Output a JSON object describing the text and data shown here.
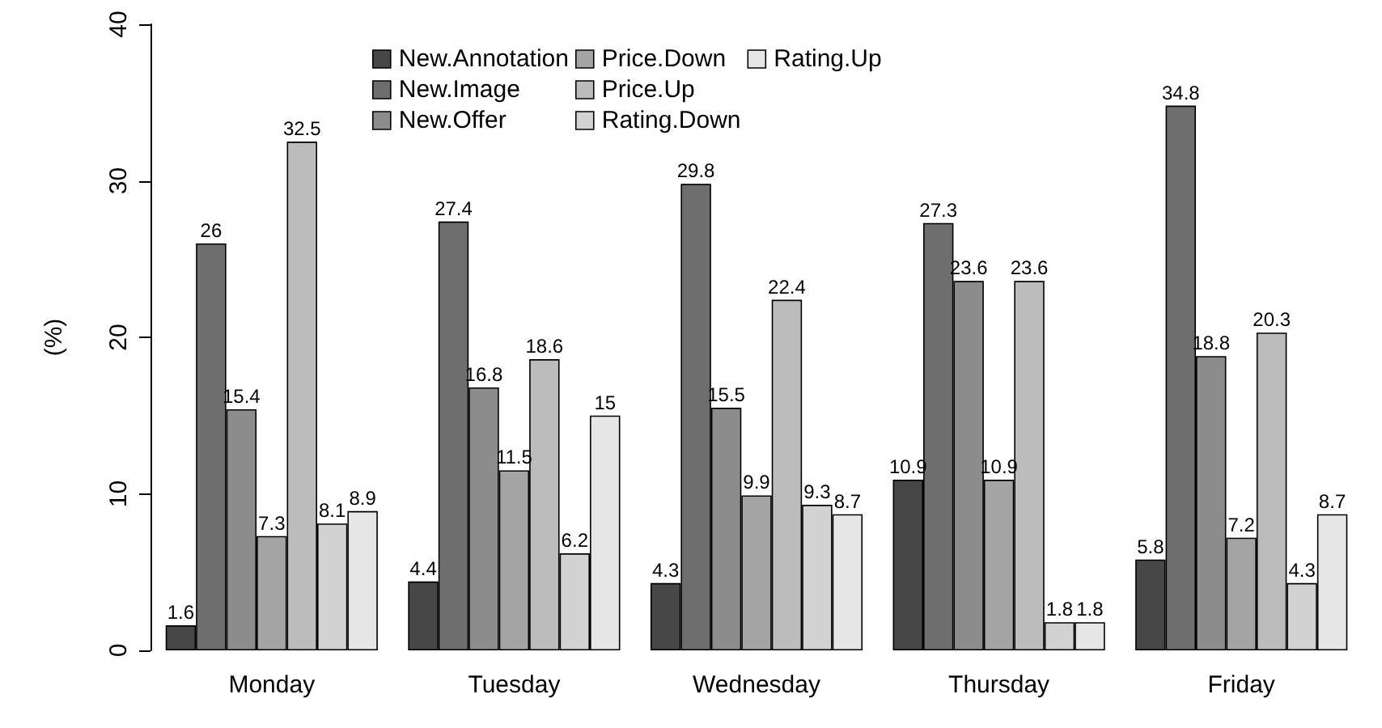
{
  "chart_data": {
    "type": "bar",
    "ylabel": "(%)",
    "categories": [
      "Monday",
      "Tuesday",
      "Wednesday",
      "Thursday",
      "Friday"
    ],
    "series": [
      {
        "name": "New.Annotation",
        "color": "#474747",
        "values": [
          1.6,
          4.4,
          4.3,
          10.9,
          5.8
        ]
      },
      {
        "name": "New.Image",
        "color": "#6e6e6e",
        "values": [
          26,
          27.4,
          29.8,
          27.3,
          34.8
        ]
      },
      {
        "name": "New.Offer",
        "color": "#8c8c8c",
        "values": [
          15.4,
          16.8,
          15.5,
          23.6,
          18.8
        ]
      },
      {
        "name": "Price.Down",
        "color": "#a4a4a4",
        "values": [
          7.3,
          11.5,
          9.9,
          10.9,
          7.2
        ]
      },
      {
        "name": "Price.Up",
        "color": "#bcbcbc",
        "values": [
          32.5,
          18.6,
          22.4,
          23.6,
          20.3
        ]
      },
      {
        "name": "Rating.Down",
        "color": "#d2d2d2",
        "values": [
          8.1,
          6.2,
          9.3,
          1.8,
          4.3
        ]
      },
      {
        "name": "Rating.Up",
        "color": "#e6e6e6",
        "values": [
          8.9,
          15,
          8.7,
          1.8,
          8.7
        ]
      }
    ],
    "ylim": [
      0,
      40
    ],
    "yticks": [
      0,
      10,
      20,
      30,
      40
    ],
    "data_labels": true,
    "grid": false,
    "legend": "top"
  }
}
